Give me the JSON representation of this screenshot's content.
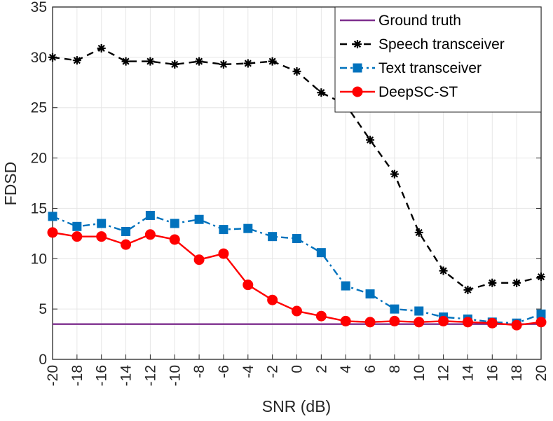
{
  "chart_data": {
    "type": "line",
    "title": "",
    "xlabel": "SNR (dB)",
    "ylabel": "FDSD",
    "x": [
      -20,
      -18,
      -16,
      -14,
      -12,
      -10,
      -8,
      -6,
      -4,
      -2,
      0,
      2,
      4,
      6,
      8,
      10,
      12,
      14,
      16,
      18,
      20
    ],
    "xlim": [
      -20,
      20
    ],
    "ylim": [
      0,
      35
    ],
    "xticks": [
      "-20",
      "-18",
      "-16",
      "-14",
      "-12",
      "-10",
      "-8",
      "-6",
      "-4",
      "-2",
      "0",
      "2",
      "4",
      "6",
      "8",
      "10",
      "12",
      "14",
      "16",
      "18",
      "20"
    ],
    "yticks": [
      "0",
      "5",
      "10",
      "15",
      "20",
      "25",
      "30",
      "35"
    ],
    "grid": true,
    "legend_position": "top-right",
    "series": [
      {
        "name": "Ground truth",
        "color": "#7e2f8e",
        "line_style": "solid",
        "marker": "none",
        "values": [
          3.5,
          3.5,
          3.5,
          3.5,
          3.5,
          3.5,
          3.5,
          3.5,
          3.5,
          3.5,
          3.5,
          3.5,
          3.5,
          3.5,
          3.5,
          3.5,
          3.5,
          3.5,
          3.5,
          3.5,
          3.5
        ]
      },
      {
        "name": "Speech transceiver",
        "color": "#000000",
        "line_style": "dashed",
        "marker": "asterisk",
        "values": [
          30.0,
          29.7,
          30.9,
          29.6,
          29.6,
          29.3,
          29.6,
          29.3,
          29.4,
          29.6,
          28.6,
          26.5,
          25.3,
          21.8,
          18.4,
          12.6,
          8.8,
          6.9,
          7.6,
          7.6,
          8.2
        ]
      },
      {
        "name": "Text transceiver",
        "color": "#0072bd",
        "line_style": "dash-dot",
        "marker": "square",
        "values": [
          14.2,
          13.2,
          13.5,
          12.7,
          14.3,
          13.5,
          13.9,
          12.9,
          13.0,
          12.2,
          12.0,
          10.6,
          7.3,
          6.5,
          5.0,
          4.8,
          4.2,
          4.0,
          3.7,
          3.6,
          4.5
        ]
      },
      {
        "name": "DeepSC-ST",
        "color": "#ff0000",
        "line_style": "solid",
        "marker": "circle",
        "values": [
          12.6,
          12.2,
          12.2,
          11.4,
          12.4,
          11.9,
          9.9,
          10.5,
          7.4,
          5.9,
          4.8,
          4.3,
          3.8,
          3.7,
          3.8,
          3.7,
          3.8,
          3.7,
          3.6,
          3.4,
          3.7
        ]
      }
    ]
  }
}
